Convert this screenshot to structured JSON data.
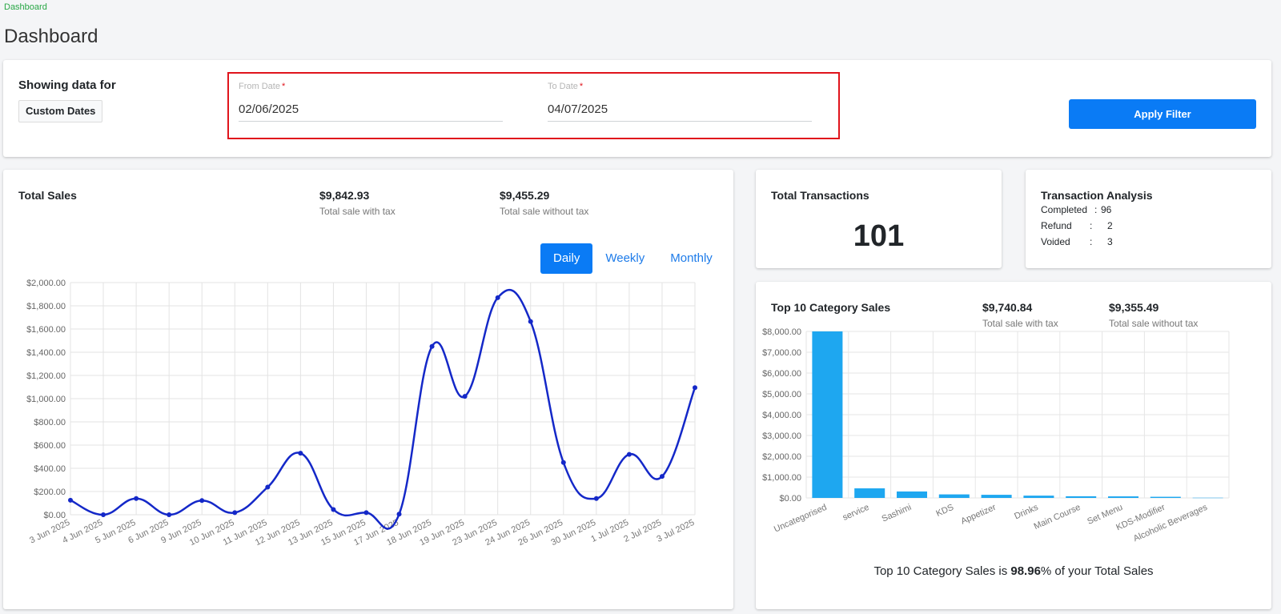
{
  "breadcrumb": "Dashboard",
  "page_title": "Dashboard",
  "filter": {
    "showing_label": "Showing data for",
    "mode_button": "Custom Dates",
    "from_label": "From Date",
    "from_value": "02/06/2025",
    "to_label": "To Date",
    "to_value": "04/07/2025",
    "required_mark": "*",
    "apply_label": "Apply Filter"
  },
  "total_sales": {
    "title": "Total Sales",
    "with_tax_value": "$9,842.93",
    "with_tax_label": "Total sale with tax",
    "without_tax_value": "$9,455.29",
    "without_tax_label": "Total sale without tax",
    "tabs": [
      "Daily",
      "Weekly",
      "Monthly"
    ],
    "active_tab": "Daily"
  },
  "transactions": {
    "title": "Total Transactions",
    "count": "101"
  },
  "analysis": {
    "title": "Transaction Analysis",
    "rows": [
      {
        "label": "Completed",
        "sep": ":",
        "value": "96"
      },
      {
        "label": "Refund",
        "sep": ":",
        "value": "2"
      },
      {
        "label": "Voided",
        "sep": ":",
        "value": "3"
      }
    ]
  },
  "category_sales": {
    "title": "Top 10 Category Sales",
    "with_tax_value": "$9,740.84",
    "with_tax_label": "Total sale with tax",
    "without_tax_value": "$9,355.49",
    "without_tax_label": "Total sale without tax",
    "footnote_prefix": "Top 10 Category Sales is ",
    "footnote_pct": "98.96",
    "footnote_suffix": "% of your Total Sales"
  },
  "colors": {
    "accent": "#0a7bf5",
    "line": "#1428c8",
    "bar": "#1ea7f0",
    "highlight_border": "#e0141c"
  },
  "chart_data": [
    {
      "type": "line",
      "categories": [
        "3 Jun 2025",
        "4 Jun 2025",
        "5 Jun 2025",
        "6 Jun 2025",
        "9 Jun 2025",
        "10 Jun 2025",
        "11 Jun 2025",
        "12 Jun 2025",
        "13 Jun 2025",
        "15 Jun 2025",
        "17 Jun 2025",
        "18 Jun 2025",
        "19 Jun 2025",
        "23 Jun 2025",
        "24 Jun 2025",
        "26 Jun 2025",
        "30 Jun 2025",
        "1 Jul 2025",
        "2 Jul 2025",
        "3 Jul 2025"
      ],
      "values": [
        125,
        0,
        140,
        0,
        122,
        18,
        238,
        530,
        45,
        18,
        5,
        1450,
        1020,
        1870,
        1665,
        450,
        140,
        520,
        330,
        1095
      ],
      "ylim": [
        0,
        2000
      ],
      "yticks": [
        "$0.00",
        "$200.00",
        "$400.00",
        "$600.00",
        "$800.00",
        "$1,000.00",
        "$1,200.00",
        "$1,400.00",
        "$1,600.00",
        "$1,800.00",
        "$2,000.00"
      ],
      "grid": true
    },
    {
      "type": "bar",
      "categories": [
        "Uncategorised",
        "service",
        "Sashimi",
        "KDS",
        "Appetizer",
        "Drinks",
        "Main Course",
        "Set Menu",
        "KDS-Modifier",
        "Alcoholic Beverages"
      ],
      "values": [
        8000,
        460,
        310,
        170,
        150,
        110,
        80,
        75,
        55,
        10
      ],
      "ylim": [
        0,
        8000
      ],
      "yticks": [
        "$0.00",
        "$1,000.00",
        "$2,000.00",
        "$3,000.00",
        "$4,000.00",
        "$5,000.00",
        "$6,000.00",
        "$7,000.00",
        "$8,000.00"
      ],
      "grid": true
    }
  ]
}
